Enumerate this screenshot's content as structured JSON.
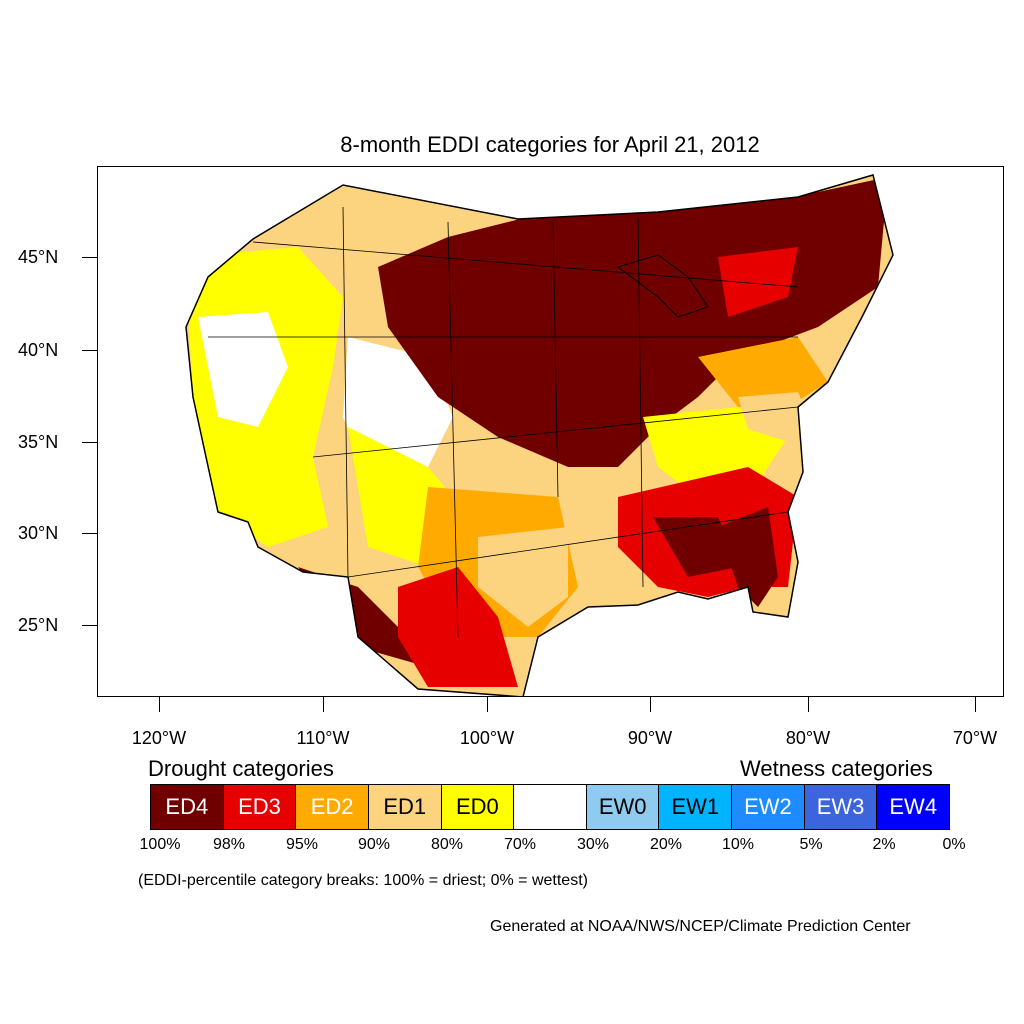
{
  "title": "8-month EDDI categories for April 21, 2012",
  "latitude_labels": [
    "45°N",
    "40°N",
    "35°N",
    "30°N",
    "25°N"
  ],
  "longitude_labels": [
    "120°W",
    "110°W",
    "100°W",
    "90°W",
    "80°W",
    "70°W"
  ],
  "legend": {
    "drought_title": "Drought categories",
    "wetness_title": "Wetness categories",
    "categories": [
      {
        "label": "ED4",
        "color": "#700000",
        "text_color": "#ffffff"
      },
      {
        "label": "ED3",
        "color": "#e60000",
        "text_color": "#ffffff"
      },
      {
        "label": "ED2",
        "color": "#ffaa00",
        "text_color": "#ffffff"
      },
      {
        "label": "ED1",
        "color": "#fcd37f",
        "text_color": "#000000"
      },
      {
        "label": "ED0",
        "color": "#ffff00",
        "text_color": "#000000"
      },
      {
        "label": "",
        "color": "#ffffff",
        "text_color": "#000000"
      },
      {
        "label": "EW0",
        "color": "#8fcbef",
        "text_color": "#000000"
      },
      {
        "label": "EW1",
        "color": "#00b4ff",
        "text_color": "#000000"
      },
      {
        "label": "EW2",
        "color": "#1e8cff",
        "text_color": "#ffffff"
      },
      {
        "label": "EW3",
        "color": "#3c64dc",
        "text_color": "#ffffff"
      },
      {
        "label": "EW4",
        "color": "#0000ff",
        "text_color": "#ffffff"
      }
    ],
    "breaks": [
      "100%",
      "98%",
      "95%",
      "90%",
      "80%",
      "70%",
      "30%",
      "20%",
      "10%",
      "5%",
      "2%",
      "0%"
    ]
  },
  "note": "(EDDI-percentile category breaks: 100% = driest; 0% = wettest)",
  "credit": "Generated at NOAA/NWS/NCEP/Climate Prediction Center"
}
